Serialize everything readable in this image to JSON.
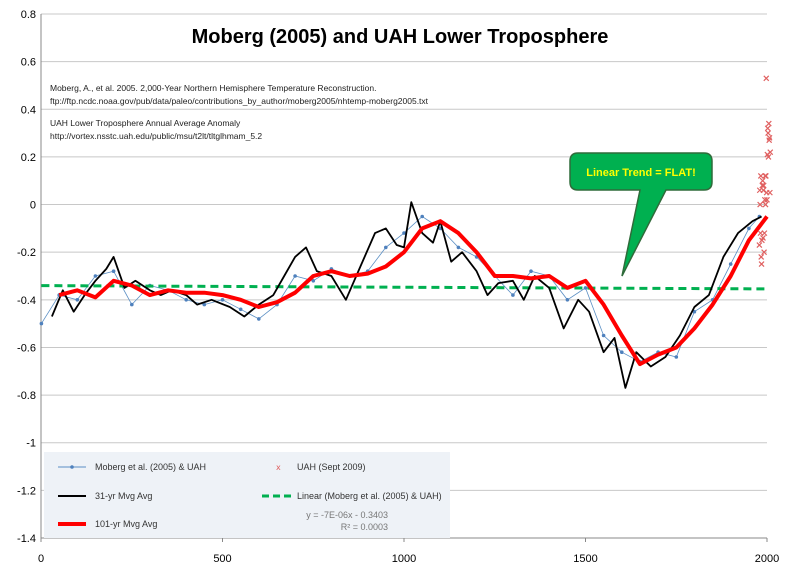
{
  "chart_data": {
    "type": "line",
    "title": "Moberg (2005) and UAH Lower Troposphere",
    "xlabel": "",
    "ylabel": "",
    "xlim": [
      0,
      2000
    ],
    "ylim": [
      -1.4,
      0.8
    ],
    "x_ticks": [
      "0",
      "500",
      "1000",
      "1500",
      "2000"
    ],
    "y_ticks": [
      "0.8",
      "0.6",
      "0.4",
      "0.2",
      "0",
      "-0.2",
      "-0.4",
      "-0.6",
      "-0.8",
      "-1",
      "-1.2",
      "-1.4"
    ],
    "grid": "horizontal",
    "legend_position": "bottom-left",
    "notes": [
      "Moberg, A., et al. 2005. 2,000-Year Northern Hemisphere Temperature Reconstruction.",
      "ftp://ftp.ncdc.noaa.gov/pub/data/paleo/contributions_by_author/moberg2005/nhtemp-moberg2005.txt",
      "UAH Lower Troposphere Annual Average Anomaly",
      "http://vortex.nsstc.uah.edu/public/msu/t2lt/tltglhmam_5.2"
    ],
    "callout": "Linear Trend = FLAT!",
    "trend_equation": "y = -7E-06x - 0.3403",
    "trend_r2": "R² = 0.0003",
    "colors": {
      "raw": "#5b8fc4",
      "raw_marker": "#4f81bd",
      "mavg31": "#000000",
      "mavg101": "#ff0000",
      "linear": "#00b050",
      "uah": "#e06060",
      "callout_fill": "#00b050",
      "callout_text": "#ffff00",
      "legend_bg": "#eef2f7"
    },
    "series": [
      {
        "name": "Moberg et al. (2005) & UAH",
        "style": "thin line with dot markers",
        "x": [
          1,
          50,
          100,
          150,
          200,
          250,
          300,
          350,
          400,
          450,
          500,
          550,
          600,
          650,
          700,
          750,
          800,
          850,
          900,
          950,
          1000,
          1050,
          1100,
          1150,
          1200,
          1250,
          1300,
          1350,
          1400,
          1450,
          1500,
          1550,
          1600,
          1650,
          1700,
          1750,
          1800,
          1850,
          1900,
          1950,
          1979
        ],
        "y": [
          -0.5,
          -0.38,
          -0.4,
          -0.3,
          -0.28,
          -0.42,
          -0.34,
          -0.36,
          -0.4,
          -0.42,
          -0.4,
          -0.44,
          -0.48,
          -0.42,
          -0.3,
          -0.32,
          -0.27,
          -0.3,
          -0.28,
          -0.18,
          -0.12,
          -0.05,
          -0.1,
          -0.18,
          -0.22,
          -0.3,
          -0.38,
          -0.28,
          -0.3,
          -0.4,
          -0.35,
          -0.55,
          -0.62,
          -0.66,
          -0.62,
          -0.64,
          -0.45,
          -0.4,
          -0.25,
          -0.1,
          -0.05
        ]
      },
      {
        "name": "UAH (Sept 2009)",
        "style": "x markers",
        "x": [
          1979,
          1980,
          1981,
          1982,
          1983,
          1984,
          1985,
          1986,
          1987,
          1988,
          1989,
          1990,
          1991,
          1992,
          1993,
          1994,
          1995,
          1996,
          1997,
          1998,
          1999,
          2000,
          2001,
          2002,
          2003,
          2004,
          2005,
          2006,
          2007,
          2008,
          2009
        ],
        "y": [
          -0.17,
          0.06,
          0.0,
          -0.12,
          0.12,
          -0.22,
          -0.25,
          -0.15,
          0.08,
          0.1,
          -0.14,
          0.06,
          0.08,
          -0.2,
          -0.12,
          0.02,
          0.12,
          0.0,
          0.12,
          0.53,
          0.05,
          0.02,
          0.21,
          0.32,
          0.3,
          0.2,
          0.34,
          0.27,
          0.28,
          0.05,
          0.22
        ]
      },
      {
        "name": "31-yr Mvg Avg",
        "style": "black line",
        "x": [
          30,
          60,
          90,
          120,
          150,
          180,
          200,
          230,
          260,
          300,
          330,
          360,
          400,
          430,
          470,
          520,
          560,
          600,
          640,
          670,
          700,
          730,
          760,
          800,
          840,
          880,
          920,
          950,
          980,
          1000,
          1020,
          1050,
          1080,
          1100,
          1130,
          1160,
          1200,
          1230,
          1260,
          1300,
          1330,
          1360,
          1400,
          1440,
          1480,
          1510,
          1550,
          1580,
          1610,
          1640,
          1680,
          1720,
          1760,
          1800,
          1840,
          1880,
          1920,
          1960,
          1985
        ],
        "y": [
          -0.47,
          -0.36,
          -0.45,
          -0.38,
          -0.32,
          -0.27,
          -0.22,
          -0.35,
          -0.32,
          -0.36,
          -0.38,
          -0.36,
          -0.38,
          -0.42,
          -0.4,
          -0.43,
          -0.47,
          -0.42,
          -0.38,
          -0.3,
          -0.22,
          -0.18,
          -0.28,
          -0.3,
          -0.4,
          -0.26,
          -0.12,
          -0.1,
          -0.17,
          -0.18,
          0.01,
          -0.12,
          -0.16,
          -0.07,
          -0.24,
          -0.2,
          -0.28,
          -0.38,
          -0.33,
          -0.32,
          -0.4,
          -0.3,
          -0.35,
          -0.52,
          -0.4,
          -0.45,
          -0.62,
          -0.56,
          -0.77,
          -0.62,
          -0.68,
          -0.64,
          -0.55,
          -0.43,
          -0.38,
          -0.22,
          -0.12,
          -0.07,
          -0.05
        ]
      },
      {
        "name": "101-yr Mvg Avg",
        "style": "thick red line",
        "x": [
          50,
          100,
          150,
          200,
          250,
          300,
          350,
          400,
          450,
          500,
          550,
          600,
          650,
          700,
          750,
          800,
          850,
          900,
          950,
          1000,
          1050,
          1100,
          1150,
          1200,
          1250,
          1300,
          1350,
          1400,
          1450,
          1500,
          1550,
          1600,
          1650,
          1700,
          1750,
          1800,
          1850,
          1900,
          1950,
          2000
        ],
        "y": [
          -0.38,
          -0.36,
          -0.39,
          -0.32,
          -0.34,
          -0.38,
          -0.36,
          -0.37,
          -0.37,
          -0.38,
          -0.4,
          -0.43,
          -0.41,
          -0.37,
          -0.3,
          -0.28,
          -0.3,
          -0.29,
          -0.26,
          -0.2,
          -0.1,
          -0.07,
          -0.12,
          -0.2,
          -0.3,
          -0.3,
          -0.31,
          -0.3,
          -0.35,
          -0.32,
          -0.42,
          -0.55,
          -0.67,
          -0.63,
          -0.6,
          -0.52,
          -0.42,
          -0.3,
          -0.15,
          -0.05
        ]
      },
      {
        "name": "Linear (Moberg et al. (2005) & UAH)",
        "style": "dashed green line",
        "x": [
          1,
          2000
        ],
        "y": [
          -0.3403,
          -0.3543
        ]
      }
    ]
  }
}
